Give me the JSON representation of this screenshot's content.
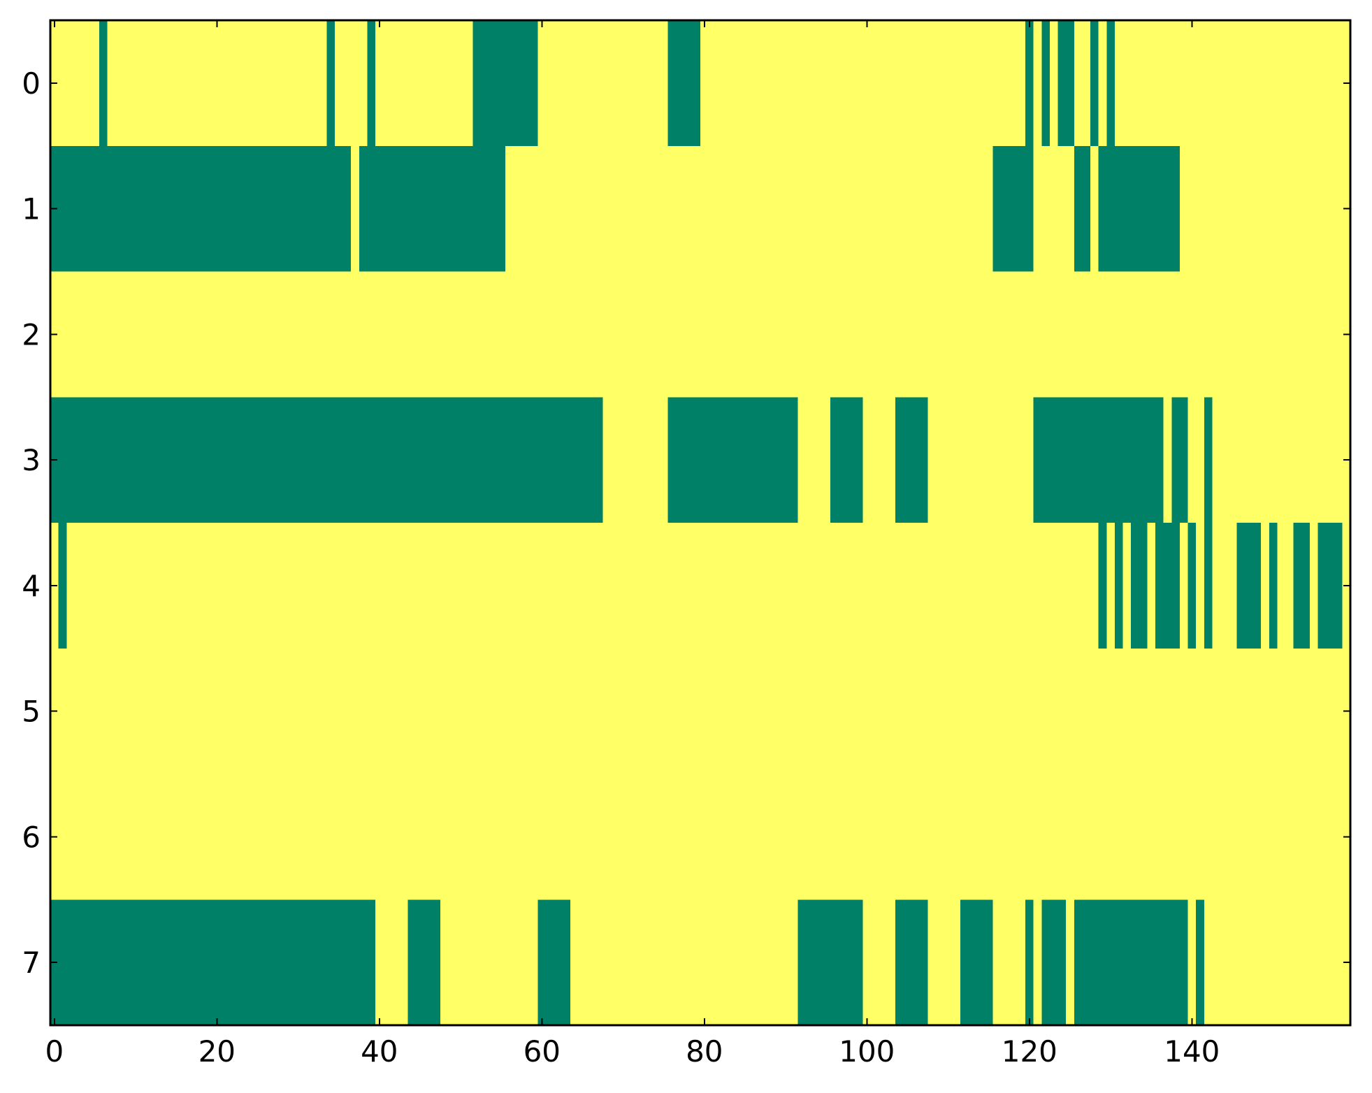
{
  "chart_data": {
    "type": "heatmap",
    "colors": [
      "#ffff66",
      "#008066"
    ],
    "xlim": [
      -0.5,
      159.5
    ],
    "ylim": [
      7.5,
      -0.5
    ],
    "xticks": [
      0,
      20,
      40,
      60,
      80,
      100,
      120,
      140
    ],
    "yticks": [
      0,
      1,
      2,
      3,
      4,
      5,
      6,
      7
    ],
    "z": [
      [
        0,
        0,
        0,
        0,
        0,
        0,
        1,
        0,
        0,
        0,
        0,
        0,
        0,
        0,
        0,
        0,
        0,
        0,
        0,
        0,
        0,
        0,
        0,
        0,
        0,
        0,
        0,
        0,
        0,
        0,
        0,
        0,
        0,
        0,
        1,
        0,
        0,
        0,
        0,
        1,
        0,
        0,
        0,
        0,
        0,
        0,
        0,
        0,
        0,
        0,
        0,
        0,
        1,
        1,
        1,
        1,
        1,
        1,
        1,
        1,
        0,
        0,
        0,
        0,
        0,
        0,
        0,
        0,
        0,
        0,
        0,
        0,
        0,
        0,
        0,
        0,
        1,
        1,
        1,
        1,
        0,
        0,
        0,
        0,
        0,
        0,
        0,
        0,
        0,
        0,
        0,
        0,
        0,
        0,
        0,
        0,
        0,
        0,
        0,
        0,
        0,
        0,
        0,
        0,
        0,
        0,
        0,
        0,
        0,
        0,
        0,
        0,
        0,
        0,
        0,
        0,
        0,
        0,
        0,
        0,
        1,
        0,
        1,
        0,
        1,
        1,
        0,
        0,
        1,
        0,
        1,
        0,
        0,
        0,
        0,
        0,
        0,
        0,
        0,
        0,
        0,
        0,
        0,
        0,
        0,
        0,
        0,
        0,
        0,
        0,
        0,
        0,
        0,
        0,
        0,
        0,
        0,
        0,
        0,
        0
      ],
      [
        1,
        1,
        1,
        1,
        1,
        1,
        1,
        1,
        1,
        1,
        1,
        1,
        1,
        1,
        1,
        1,
        1,
        1,
        1,
        1,
        1,
        1,
        1,
        1,
        1,
        1,
        1,
        1,
        1,
        1,
        1,
        1,
        1,
        1,
        1,
        1,
        1,
        0,
        1,
        1,
        1,
        1,
        1,
        1,
        1,
        1,
        1,
        1,
        1,
        1,
        1,
        1,
        1,
        1,
        1,
        1,
        0,
        0,
        0,
        0,
        0,
        0,
        0,
        0,
        0,
        0,
        0,
        0,
        0,
        0,
        0,
        0,
        0,
        0,
        0,
        0,
        0,
        0,
        0,
        0,
        0,
        0,
        0,
        0,
        0,
        0,
        0,
        0,
        0,
        0,
        0,
        0,
        0,
        0,
        0,
        0,
        0,
        0,
        0,
        0,
        0,
        0,
        0,
        0,
        0,
        0,
        0,
        0,
        0,
        0,
        0,
        0,
        0,
        0,
        0,
        0,
        1,
        1,
        1,
        1,
        1,
        0,
        0,
        0,
        0,
        0,
        1,
        1,
        0,
        1,
        1,
        1,
        1,
        1,
        1,
        1,
        1,
        1,
        1,
        0,
        0,
        0,
        0,
        0,
        0,
        0,
        0,
        0,
        0,
        0,
        0,
        0,
        0,
        0,
        0,
        0,
        0,
        0,
        0,
        0
      ],
      [
        0,
        0,
        0,
        0,
        0,
        0,
        0,
        0,
        0,
        0,
        0,
        0,
        0,
        0,
        0,
        0,
        0,
        0,
        0,
        0,
        0,
        0,
        0,
        0,
        0,
        0,
        0,
        0,
        0,
        0,
        0,
        0,
        0,
        0,
        0,
        0,
        0,
        0,
        0,
        0,
        0,
        0,
        0,
        0,
        0,
        0,
        0,
        0,
        0,
        0,
        0,
        0,
        0,
        0,
        0,
        0,
        0,
        0,
        0,
        0,
        0,
        0,
        0,
        0,
        0,
        0,
        0,
        0,
        0,
        0,
        0,
        0,
        0,
        0,
        0,
        0,
        0,
        0,
        0,
        0,
        0,
        0,
        0,
        0,
        0,
        0,
        0,
        0,
        0,
        0,
        0,
        0,
        0,
        0,
        0,
        0,
        0,
        0,
        0,
        0,
        0,
        0,
        0,
        0,
        0,
        0,
        0,
        0,
        0,
        0,
        0,
        0,
        0,
        0,
        0,
        0,
        0,
        0,
        0,
        0,
        0,
        0,
        0,
        0,
        0,
        0,
        0,
        0,
        0,
        0,
        0,
        0,
        0,
        0,
        0,
        0,
        0,
        0,
        0,
        0,
        0,
        0,
        0,
        0,
        0,
        0,
        0,
        0,
        0,
        0,
        0,
        0,
        0,
        0,
        0,
        0,
        0,
        0,
        0,
        0
      ],
      [
        1,
        1,
        1,
        1,
        1,
        1,
        1,
        1,
        1,
        1,
        1,
        1,
        1,
        1,
        1,
        1,
        1,
        1,
        1,
        1,
        1,
        1,
        1,
        1,
        1,
        1,
        1,
        1,
        1,
        1,
        1,
        1,
        1,
        1,
        1,
        1,
        1,
        1,
        1,
        1,
        1,
        1,
        1,
        1,
        1,
        1,
        1,
        1,
        1,
        1,
        1,
        1,
        1,
        1,
        1,
        1,
        1,
        1,
        1,
        1,
        1,
        1,
        1,
        1,
        1,
        1,
        1,
        1,
        0,
        0,
        0,
        0,
        0,
        0,
        0,
        0,
        1,
        1,
        1,
        1,
        1,
        1,
        1,
        1,
        1,
        1,
        1,
        1,
        1,
        1,
        1,
        1,
        0,
        0,
        0,
        0,
        1,
        1,
        1,
        1,
        0,
        0,
        0,
        0,
        1,
        1,
        1,
        1,
        0,
        0,
        0,
        0,
        0,
        0,
        0,
        0,
        0,
        0,
        0,
        0,
        0,
        1,
        1,
        1,
        1,
        1,
        1,
        1,
        1,
        1,
        1,
        1,
        1,
        1,
        1,
        1,
        1,
        0,
        1,
        1,
        0,
        0,
        1,
        0,
        0,
        0,
        0,
        0,
        0,
        0,
        0,
        0,
        0,
        0,
        0,
        0,
        0,
        0,
        0,
        0
      ],
      [
        0,
        1,
        0,
        0,
        0,
        0,
        0,
        0,
        0,
        0,
        0,
        0,
        0,
        0,
        0,
        0,
        0,
        0,
        0,
        0,
        0,
        0,
        0,
        0,
        0,
        0,
        0,
        0,
        0,
        0,
        0,
        0,
        0,
        0,
        0,
        0,
        0,
        0,
        0,
        0,
        0,
        0,
        0,
        0,
        0,
        0,
        0,
        0,
        0,
        0,
        0,
        0,
        0,
        0,
        0,
        0,
        0,
        0,
        0,
        0,
        0,
        0,
        0,
        0,
        0,
        0,
        0,
        0,
        0,
        0,
        0,
        0,
        0,
        0,
        0,
        0,
        0,
        0,
        0,
        0,
        0,
        0,
        0,
        0,
        0,
        0,
        0,
        0,
        0,
        0,
        0,
        0,
        0,
        0,
        0,
        0,
        0,
        0,
        0,
        0,
        0,
        0,
        0,
        0,
        0,
        0,
        0,
        0,
        0,
        0,
        0,
        0,
        0,
        0,
        0,
        0,
        0,
        0,
        0,
        0,
        0,
        0,
        0,
        0,
        0,
        0,
        0,
        0,
        0,
        1,
        0,
        1,
        0,
        1,
        1,
        0,
        1,
        1,
        1,
        0,
        1,
        0,
        1,
        0,
        0,
        0,
        1,
        1,
        1,
        0,
        1,
        0,
        0,
        1,
        1,
        0,
        1,
        1,
        1,
        0
      ],
      [
        0,
        0,
        0,
        0,
        0,
        0,
        0,
        0,
        0,
        0,
        0,
        0,
        0,
        0,
        0,
        0,
        0,
        0,
        0,
        0,
        0,
        0,
        0,
        0,
        0,
        0,
        0,
        0,
        0,
        0,
        0,
        0,
        0,
        0,
        0,
        0,
        0,
        0,
        0,
        0,
        0,
        0,
        0,
        0,
        0,
        0,
        0,
        0,
        0,
        0,
        0,
        0,
        0,
        0,
        0,
        0,
        0,
        0,
        0,
        0,
        0,
        0,
        0,
        0,
        0,
        0,
        0,
        0,
        0,
        0,
        0,
        0,
        0,
        0,
        0,
        0,
        0,
        0,
        0,
        0,
        0,
        0,
        0,
        0,
        0,
        0,
        0,
        0,
        0,
        0,
        0,
        0,
        0,
        0,
        0,
        0,
        0,
        0,
        0,
        0,
        0,
        0,
        0,
        0,
        0,
        0,
        0,
        0,
        0,
        0,
        0,
        0,
        0,
        0,
        0,
        0,
        0,
        0,
        0,
        0,
        0,
        0,
        0,
        0,
        0,
        0,
        0,
        0,
        0,
        0,
        0,
        0,
        0,
        0,
        0,
        0,
        0,
        0,
        0,
        0,
        0,
        0,
        0,
        0,
        0,
        0,
        0,
        0,
        0,
        0,
        0,
        0,
        0,
        0,
        0,
        0,
        0,
        0,
        0,
        0
      ],
      [
        0,
        0,
        0,
        0,
        0,
        0,
        0,
        0,
        0,
        0,
        0,
        0,
        0,
        0,
        0,
        0,
        0,
        0,
        0,
        0,
        0,
        0,
        0,
        0,
        0,
        0,
        0,
        0,
        0,
        0,
        0,
        0,
        0,
        0,
        0,
        0,
        0,
        0,
        0,
        0,
        0,
        0,
        0,
        0,
        0,
        0,
        0,
        0,
        0,
        0,
        0,
        0,
        0,
        0,
        0,
        0,
        0,
        0,
        0,
        0,
        0,
        0,
        0,
        0,
        0,
        0,
        0,
        0,
        0,
        0,
        0,
        0,
        0,
        0,
        0,
        0,
        0,
        0,
        0,
        0,
        0,
        0,
        0,
        0,
        0,
        0,
        0,
        0,
        0,
        0,
        0,
        0,
        0,
        0,
        0,
        0,
        0,
        0,
        0,
        0,
        0,
        0,
        0,
        0,
        0,
        0,
        0,
        0,
        0,
        0,
        0,
        0,
        0,
        0,
        0,
        0,
        0,
        0,
        0,
        0,
        0,
        0,
        0,
        0,
        0,
        0,
        0,
        0,
        0,
        0,
        0,
        0,
        0,
        0,
        0,
        0,
        0,
        0,
        0,
        0,
        0,
        0,
        0,
        0,
        0,
        0,
        0,
        0,
        0,
        0,
        0,
        0,
        0,
        0,
        0,
        0,
        0,
        0,
        0,
        0
      ],
      [
        1,
        1,
        1,
        1,
        1,
        1,
        1,
        1,
        1,
        1,
        1,
        1,
        1,
        1,
        1,
        1,
        1,
        1,
        1,
        1,
        1,
        1,
        1,
        1,
        1,
        1,
        1,
        1,
        1,
        1,
        1,
        1,
        1,
        1,
        1,
        1,
        1,
        1,
        1,
        1,
        0,
        0,
        0,
        0,
        1,
        1,
        1,
        1,
        0,
        0,
        0,
        0,
        0,
        0,
        0,
        0,
        0,
        0,
        0,
        0,
        1,
        1,
        1,
        1,
        0,
        0,
        0,
        0,
        0,
        0,
        0,
        0,
        0,
        0,
        0,
        0,
        0,
        0,
        0,
        0,
        0,
        0,
        0,
        0,
        0,
        0,
        0,
        0,
        0,
        0,
        0,
        0,
        1,
        1,
        1,
        1,
        1,
        1,
        1,
        1,
        0,
        0,
        0,
        0,
        1,
        1,
        1,
        1,
        0,
        0,
        0,
        0,
        1,
        1,
        1,
        1,
        0,
        0,
        0,
        0,
        1,
        0,
        1,
        1,
        1,
        0,
        1,
        1,
        1,
        1,
        1,
        1,
        1,
        1,
        1,
        1,
        1,
        1,
        1,
        1,
        0,
        1,
        0,
        0,
        0,
        0,
        0,
        0,
        0,
        0,
        0,
        0,
        0,
        0,
        0,
        0,
        0,
        0,
        0,
        0
      ]
    ]
  }
}
